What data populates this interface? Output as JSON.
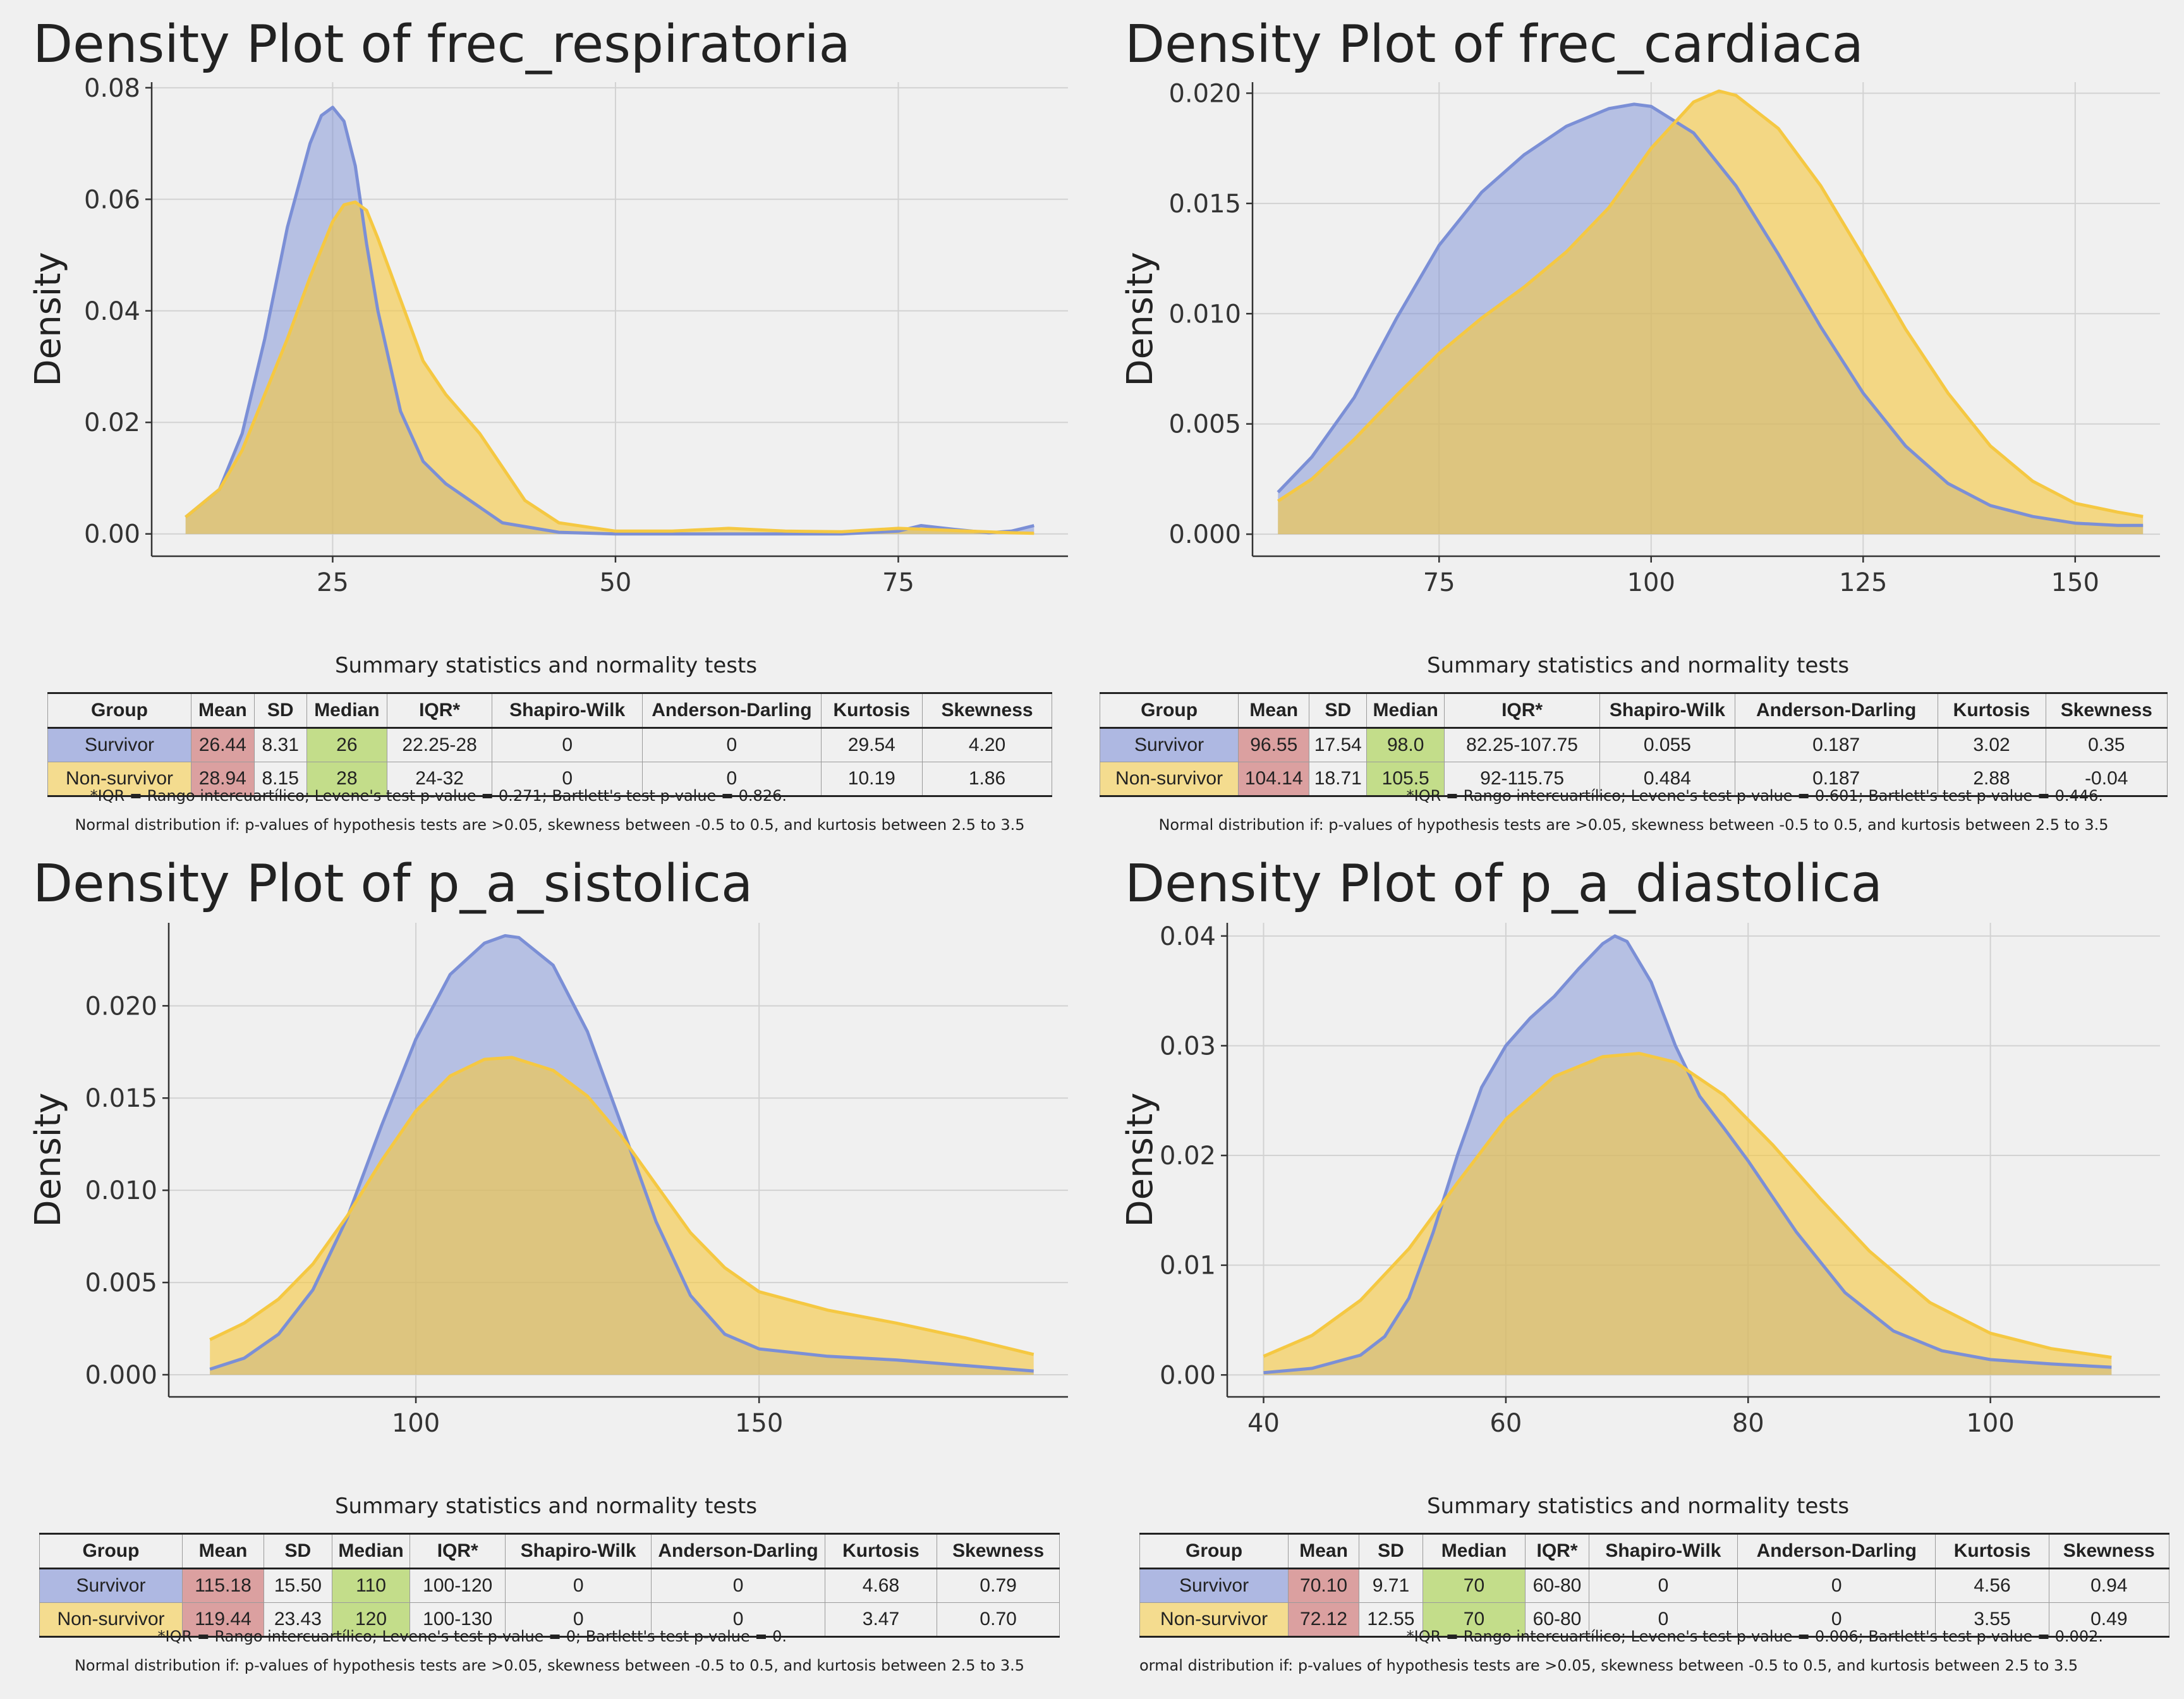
{
  "colors": {
    "survivor": "#7b8fd6",
    "non_survivor": "#f5c842",
    "mean_cell": "#dba0a0",
    "median_cell": "#c3dd8a",
    "survivor_cell": "#aeb8e2",
    "nonsurvivor_cell": "#f4dc8f"
  },
  "groups": [
    "Survivor",
    "Non-survivor"
  ],
  "panels": [
    {
      "title": "Density Plot of frec_respiratoria",
      "table_caption": "Summary statistics and normality tests",
      "headers": [
        "Group",
        "Mean",
        "SD",
        "Median",
        "IQR*",
        "Shapiro-Wilk",
        "Anderson-Darling",
        "Kurtosis",
        "Skewness"
      ],
      "rows": [
        [
          "Survivor",
          "26.44",
          "8.31",
          "26",
          "22.25-28",
          "0",
          "0",
          "29.54",
          "4.20"
        ],
        [
          "Non-survivor",
          "28.94",
          "8.15",
          "28",
          "24-32",
          "0",
          "0",
          "10.19",
          "1.86"
        ]
      ],
      "note1": "*IQR = Rango intercuartílico; Levene's test p-value = 0.271; Bartlett's test p-value = 0.826.",
      "note2": "Normal distribution if: p-values of hypothesis tests are >0.05, skewness between -0.5 to 0.5, and kurtosis between 2.5 to 3.5"
    },
    {
      "title": "Density Plot of frec_cardiaca",
      "table_caption": "Summary statistics and normality tests",
      "headers": [
        "Group",
        "Mean",
        "SD",
        "Median",
        "IQR*",
        "Shapiro-Wilk",
        "Anderson-Darling",
        "Kurtosis",
        "Skewness"
      ],
      "rows": [
        [
          "Survivor",
          "96.55",
          "17.54",
          "98.0",
          "82.25-107.75",
          "0.055",
          "0.187",
          "3.02",
          "0.35"
        ],
        [
          "Non-survivor",
          "104.14",
          "18.71",
          "105.5",
          "92-115.75",
          "0.484",
          "0.187",
          "2.88",
          "-0.04"
        ]
      ],
      "note1": "*IQR = Rango intercuartílico; Levene's test p-value = 0.601; Bartlett's test p-value = 0.446.",
      "note2": "Normal distribution if: p-values of hypothesis tests are >0.05, skewness between -0.5 to 0.5, and kurtosis between 2.5 to 3.5"
    },
    {
      "title": "Density Plot of p_a_sistolica",
      "table_caption": "Summary statistics and normality tests",
      "headers": [
        "Group",
        "Mean",
        "SD",
        "Median",
        "IQR*",
        "Shapiro-Wilk",
        "Anderson-Darling",
        "Kurtosis",
        "Skewness"
      ],
      "rows": [
        [
          "Survivor",
          "115.18",
          "15.50",
          "110",
          "100-120",
          "0",
          "0",
          "4.68",
          "0.79"
        ],
        [
          "Non-survivor",
          "119.44",
          "23.43",
          "120",
          "100-130",
          "0",
          "0",
          "3.47",
          "0.70"
        ]
      ],
      "note1": "*IQR = Rango intercuartílico; Levene's test p-value = 0; Bartlett's test p-value = 0.",
      "note2": "Normal distribution if: p-values of hypothesis tests are >0.05, skewness between -0.5 to 0.5, and kurtosis between 2.5 to 3.5"
    },
    {
      "title": "Density Plot of p_a_diastolica",
      "table_caption": "Summary statistics and normality tests",
      "headers": [
        "Group",
        "Mean",
        "SD",
        "Median",
        "IQR*",
        "Shapiro-Wilk",
        "Anderson-Darling",
        "Kurtosis",
        "Skewness"
      ],
      "rows": [
        [
          "Survivor",
          "70.10",
          "9.71",
          "70",
          "60-80",
          "0",
          "0",
          "4.56",
          "0.94"
        ],
        [
          "Non-survivor",
          "72.12",
          "12.55",
          "70",
          "60-80",
          "0",
          "0",
          "3.55",
          "0.49"
        ]
      ],
      "note1": "*IQR = Rango intercuartílico; Levene's test p-value = 0.006; Bartlett's test p-value = 0.002.",
      "note2": "ormal distribution if: p-values of hypothesis tests are >0.05, skewness between -0.5 to 0.5, and kurtosis between 2.5 to 3.5"
    }
  ],
  "chart_data": [
    {
      "type": "area",
      "title": "Density Plot of frec_respiratoria",
      "xlabel": "",
      "ylabel": "Density",
      "xlim": [
        9,
        90
      ],
      "ylim": [
        -0.004,
        0.081
      ],
      "xticks": [
        25,
        50,
        75
      ],
      "xtick_labels": [
        "25",
        "50",
        "75"
      ],
      "yticks": [
        0,
        0.02,
        0.04,
        0.06,
        0.08
      ],
      "ytick_labels": [
        "0.00",
        "0.02",
        "0.04",
        "0.06",
        "0.08"
      ],
      "grid": true,
      "series": [
        {
          "name": "Survivor",
          "x": [
            12,
            15,
            17,
            19,
            21,
            23,
            24,
            25,
            26,
            27,
            28,
            29,
            31,
            33,
            35,
            40,
            45,
            50,
            55,
            60,
            65,
            70,
            75,
            77,
            80,
            83,
            85,
            87
          ],
          "y": [
            0.003,
            0.008,
            0.018,
            0.035,
            0.055,
            0.07,
            0.075,
            0.0765,
            0.074,
            0.066,
            0.052,
            0.04,
            0.022,
            0.013,
            0.009,
            0.002,
            0.0003,
            0,
            0,
            0,
            0,
            0,
            0.0005,
            0.0015,
            0.0008,
            0.0002,
            0.0005,
            0.0015
          ]
        },
        {
          "name": "Non-survivor",
          "x": [
            12,
            15,
            17,
            19,
            21,
            23,
            25,
            26,
            27,
            28,
            29,
            31,
            33,
            35,
            38,
            40,
            42,
            45,
            50,
            55,
            60,
            65,
            70,
            75,
            80,
            85,
            87
          ],
          "y": [
            0.003,
            0.008,
            0.015,
            0.025,
            0.035,
            0.046,
            0.056,
            0.059,
            0.0595,
            0.058,
            0.053,
            0.042,
            0.031,
            0.025,
            0.018,
            0.012,
            0.006,
            0.002,
            0.0005,
            0.0005,
            0.001,
            0.0005,
            0.0004,
            0.001,
            0.0006,
            0.0002,
            0.0001
          ]
        }
      ]
    },
    {
      "type": "area",
      "title": "Density Plot of frec_cardiaca",
      "xlabel": "",
      "ylabel": "Density",
      "xlim": [
        53,
        160
      ],
      "ylim": [
        -0.001,
        0.0205
      ],
      "xticks": [
        75,
        100,
        125,
        150
      ],
      "xtick_labels": [
        "75",
        "100",
        "125",
        "150"
      ],
      "yticks": [
        0,
        0.005,
        0.01,
        0.015,
        0.02
      ],
      "ytick_labels": [
        "0.000",
        "0.005",
        "0.010",
        "0.015",
        "0.020"
      ],
      "grid": true,
      "series": [
        {
          "name": "Survivor",
          "x": [
            56,
            60,
            65,
            70,
            75,
            80,
            85,
            90,
            95,
            98,
            100,
            105,
            110,
            115,
            120,
            125,
            130,
            135,
            140,
            145,
            150,
            155,
            158
          ],
          "y": [
            0.0019,
            0.0035,
            0.0062,
            0.0098,
            0.0131,
            0.0155,
            0.0172,
            0.0185,
            0.0193,
            0.0195,
            0.0194,
            0.0182,
            0.0158,
            0.0127,
            0.0094,
            0.0064,
            0.004,
            0.0023,
            0.0013,
            0.0008,
            0.0005,
            0.0004,
            0.0004
          ]
        },
        {
          "name": "Non-survivor",
          "x": [
            56,
            60,
            65,
            70,
            75,
            80,
            85,
            90,
            95,
            100,
            105,
            108,
            110,
            115,
            120,
            125,
            130,
            135,
            140,
            145,
            150,
            155,
            158
          ],
          "y": [
            0.0015,
            0.0025,
            0.0043,
            0.0063,
            0.0082,
            0.0098,
            0.0112,
            0.0128,
            0.0148,
            0.0175,
            0.0196,
            0.0201,
            0.0199,
            0.0184,
            0.0158,
            0.0126,
            0.0093,
            0.0064,
            0.004,
            0.0024,
            0.0014,
            0.001,
            0.0008
          ]
        }
      ]
    },
    {
      "type": "area",
      "title": "Density Plot of p_a_sistolica",
      "xlabel": "",
      "ylabel": "Density",
      "xlim": [
        64,
        195
      ],
      "ylim": [
        -0.0012,
        0.0245
      ],
      "xticks": [
        100,
        150
      ],
      "xtick_labels": [
        "100",
        "150"
      ],
      "yticks": [
        0,
        0.005,
        0.01,
        0.015,
        0.02
      ],
      "ytick_labels": [
        "0.000",
        "0.005",
        "0.010",
        "0.015",
        "0.020"
      ],
      "grid": true,
      "series": [
        {
          "name": "Survivor",
          "x": [
            70,
            75,
            80,
            85,
            90,
            95,
            100,
            105,
            110,
            113,
            115,
            120,
            125,
            130,
            135,
            140,
            145,
            150,
            160,
            170,
            180,
            190
          ],
          "y": [
            0.0003,
            0.0009,
            0.0022,
            0.0046,
            0.0085,
            0.0135,
            0.0182,
            0.0217,
            0.0234,
            0.0238,
            0.0237,
            0.0222,
            0.0186,
            0.0135,
            0.0083,
            0.0043,
            0.0022,
            0.0014,
            0.001,
            0.0008,
            0.0005,
            0.0002
          ]
        },
        {
          "name": "Non-survivor",
          "x": [
            70,
            75,
            80,
            85,
            90,
            95,
            100,
            105,
            110,
            114,
            120,
            125,
            130,
            135,
            140,
            145,
            150,
            160,
            170,
            180,
            190
          ],
          "y": [
            0.0019,
            0.0028,
            0.0041,
            0.006,
            0.0086,
            0.0116,
            0.0143,
            0.0162,
            0.0171,
            0.0172,
            0.0165,
            0.0151,
            0.0129,
            0.0103,
            0.0077,
            0.0058,
            0.0045,
            0.0035,
            0.0028,
            0.002,
            0.0011
          ]
        }
      ]
    },
    {
      "type": "area",
      "title": "Density Plot of p_a_diastolica",
      "xlabel": "",
      "ylabel": "Density",
      "xlim": [
        37,
        114
      ],
      "ylim": [
        -0.002,
        0.0412
      ],
      "xticks": [
        40,
        60,
        80,
        100
      ],
      "xtick_labels": [
        "40",
        "60",
        "80",
        "100"
      ],
      "yticks": [
        0,
        0.01,
        0.02,
        0.03,
        0.04
      ],
      "ytick_labels": [
        "0.00",
        "0.01",
        "0.02",
        "0.03",
        "0.04"
      ],
      "grid": true,
      "series": [
        {
          "name": "Survivor",
          "x": [
            40,
            44,
            48,
            50,
            52,
            54,
            56,
            58,
            60,
            62,
            64,
            66,
            68,
            69,
            70,
            72,
            74,
            76,
            78,
            80,
            84,
            88,
            92,
            96,
            100,
            105,
            110
          ],
          "y": [
            0.0002,
            0.0006,
            0.0018,
            0.0035,
            0.007,
            0.013,
            0.02,
            0.0262,
            0.03,
            0.0325,
            0.0345,
            0.037,
            0.0393,
            0.04,
            0.0395,
            0.0358,
            0.03,
            0.0254,
            0.0225,
            0.0195,
            0.013,
            0.0075,
            0.004,
            0.0022,
            0.0014,
            0.001,
            0.0007
          ]
        },
        {
          "name": "Non-survivor",
          "x": [
            40,
            44,
            48,
            52,
            56,
            60,
            64,
            68,
            71,
            74,
            78,
            82,
            86,
            90,
            95,
            100,
            105,
            110
          ],
          "y": [
            0.0017,
            0.0036,
            0.0068,
            0.0115,
            0.0175,
            0.0233,
            0.0272,
            0.029,
            0.0293,
            0.0285,
            0.0255,
            0.021,
            0.016,
            0.0113,
            0.0066,
            0.0038,
            0.0024,
            0.0016
          ]
        }
      ]
    }
  ]
}
